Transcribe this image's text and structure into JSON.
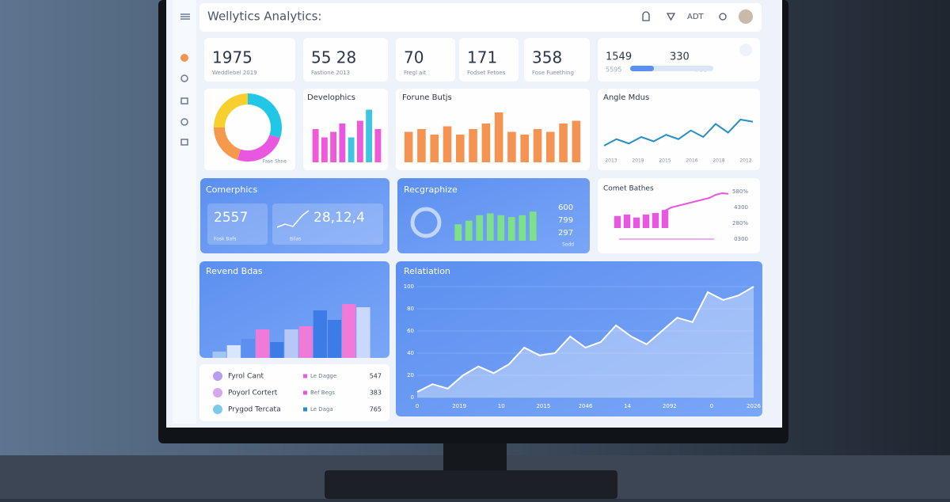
{
  "header": {
    "title": "Wellytics Analytics:",
    "user": "ADT"
  },
  "stats": [
    {
      "value": "1975",
      "label": "Weddlebel 2019"
    },
    {
      "value": "55 28",
      "label": "Fastione 2013"
    },
    {
      "value": "70",
      "label": "Fregl ait"
    },
    {
      "value": "171",
      "label": "Fodset Fetoes"
    },
    {
      "value": "358",
      "label": "Fose Fueething"
    }
  ],
  "progress": {
    "left": "1549",
    "right": "330",
    "left_sub": "5595",
    "right_sub": "700"
  },
  "donut": {
    "label": "Fase Shne",
    "values": [
      30,
      25,
      20,
      25
    ],
    "colors": [
      "#22c7e6",
      "#e757e0",
      "#f59a4c",
      "#f7cf2e"
    ]
  },
  "develophics": {
    "title": "Develophics",
    "ylim": [
      0,
      100
    ],
    "values": [
      60,
      45,
      55,
      70,
      45,
      75,
      95,
      60
    ],
    "colors": [
      "#f05ad8",
      "#f05ad8",
      "#f05ad8",
      "#e757e0",
      "#3ec6e0",
      "#f05ad8",
      "#3ec6e0",
      "#f05ad8"
    ]
  },
  "forune": {
    "title": "Forune Butjs",
    "ylim": [
      0,
      100
    ],
    "color": "#f59452",
    "values": [
      55,
      60,
      50,
      65,
      50,
      60,
      70,
      90,
      55,
      50,
      60,
      55,
      70,
      75
    ]
  },
  "angle": {
    "title": "Angle Mdus",
    "ylim": [
      0,
      100
    ],
    "color": "#2a8fc4",
    "values": [
      20,
      35,
      25,
      40,
      30,
      45,
      35,
      55,
      40,
      70,
      50,
      80,
      75
    ],
    "xlabels": [
      "2013",
      "2019",
      "2015",
      "2016",
      "2018",
      "2012"
    ]
  },
  "comerphics": {
    "title": "Comerphics",
    "value1": "2557",
    "value2": "28,12,4",
    "sub1": "Fosk Bafs",
    "sub2": "Bilas"
  },
  "recgraphize": {
    "title": "Recgraphize",
    "ylim": [
      0,
      100
    ],
    "color": "#7ee08a",
    "values": [
      45,
      55,
      70,
      75,
      70,
      65,
      70,
      80
    ],
    "right": [
      "600",
      "799",
      "297"
    ],
    "sub": "Sodd"
  },
  "comet": {
    "title": "Comet Bathes",
    "ylim": [
      0,
      100
    ],
    "color": "#e757e0",
    "values": [
      40,
      45,
      35,
      45,
      50,
      60
    ],
    "line": [
      35,
      45,
      50,
      55,
      60,
      65,
      70,
      75,
      85,
      90,
      88
    ],
    "right": [
      "580%",
      "4300",
      "280%",
      "0300"
    ]
  },
  "revend": {
    "title": "Revend Bdas",
    "ylim": [
      0,
      100
    ],
    "values": [
      10,
      20,
      30,
      45,
      25,
      45,
      50,
      75,
      60,
      85,
      80
    ],
    "colors": [
      "#9fc6f5",
      "#d9e6fb",
      "#5c8ff0",
      "#f07ad8",
      "#3d7be6",
      "#b5c8f8",
      "#f07ad8",
      "#3d7be6",
      "#3d7be6",
      "#f07ad8",
      "#c9d8fb"
    ]
  },
  "list": [
    {
      "name": "Fyrol Cant",
      "tag": "Le Dagge",
      "value": "547"
    },
    {
      "name": "Poyorl Cortert",
      "tag": "Bef Begs",
      "value": "383"
    },
    {
      "name": "Prygod Tercata",
      "tag": "Le Daga",
      "value": "765"
    }
  ],
  "relatiation": {
    "title": "Relatiation",
    "ylim": [
      0,
      100
    ],
    "yticks": [
      0,
      20,
      40,
      60,
      80,
      100
    ],
    "values": [
      5,
      12,
      8,
      20,
      28,
      22,
      30,
      45,
      38,
      40,
      55,
      45,
      50,
      65,
      55,
      48,
      60,
      72,
      68,
      95,
      88,
      92,
      100
    ],
    "xlabels": [
      "0",
      "2019",
      "10",
      "2015",
      "2046",
      "14",
      "2092",
      "0",
      "2026"
    ]
  }
}
